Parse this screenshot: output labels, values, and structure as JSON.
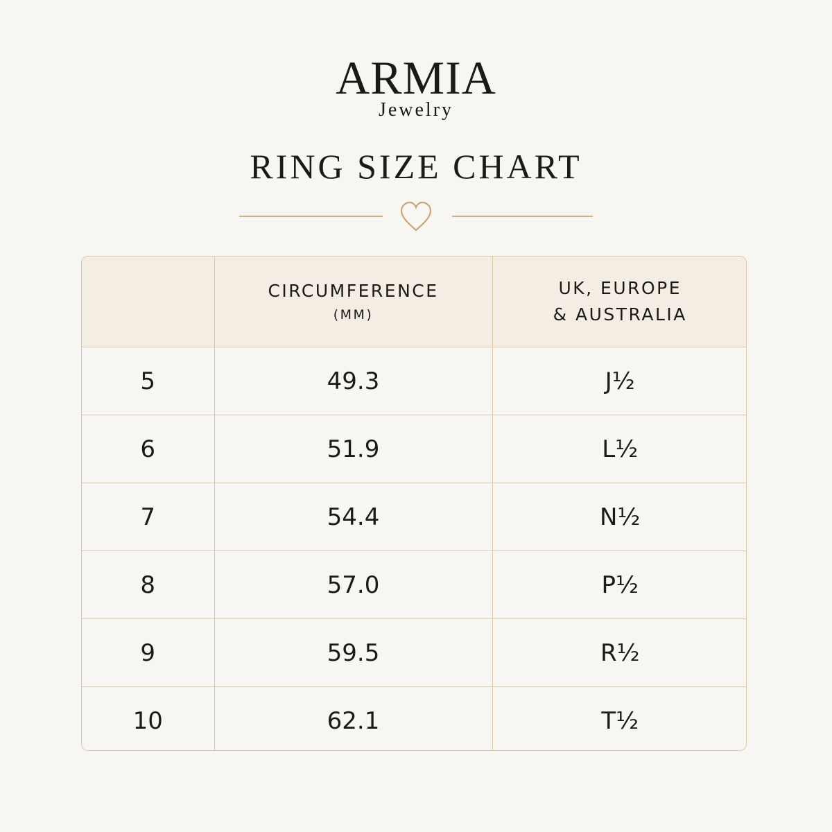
{
  "header": {
    "brand": "ARMIA",
    "subbrand": "Jewelry",
    "title": "RING SIZE CHART"
  },
  "table": {
    "headers": [
      [
        "CIRCUMFERENCE",
        "(MM)"
      ],
      [
        "UK, EUROPE",
        "& AUSTRALIA"
      ]
    ],
    "rows": [
      [
        "5",
        "49.3",
        "J½"
      ],
      [
        "6",
        "51.9",
        "L½"
      ],
      [
        "7",
        "54.4",
        "N½"
      ],
      [
        "8",
        "57.0",
        "P½"
      ],
      [
        "9",
        "59.5",
        "R½"
      ],
      [
        "10",
        "62.1",
        "T½"
      ]
    ]
  }
}
